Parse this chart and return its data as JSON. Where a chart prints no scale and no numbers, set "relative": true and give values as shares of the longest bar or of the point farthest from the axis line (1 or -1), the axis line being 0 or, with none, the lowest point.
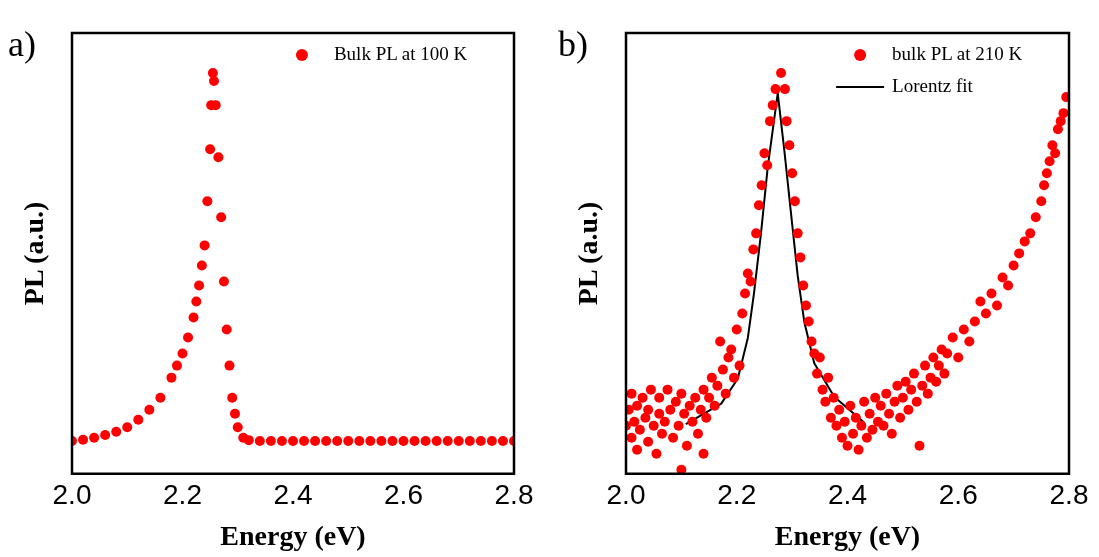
{
  "chart_data": [
    {
      "type": "scatter",
      "title": "a)",
      "xlabel": "Energy (eV)",
      "ylabel": "PL (a.u.)",
      "relative": true,
      "xlim": [
        2.0,
        2.8
      ],
      "xticks": [
        {
          "value": 2.0,
          "label": "2.0"
        },
        {
          "value": 2.2,
          "label": "2.2"
        },
        {
          "value": 2.4,
          "label": "2.4"
        },
        {
          "value": 2.6,
          "label": "2.6"
        },
        {
          "value": 2.8,
          "label": "2.8"
        }
      ],
      "legend": "top right",
      "marker": "circle",
      "series": [
        {
          "name": "Bulk PL at 100 K",
          "color": "#ff0000",
          "x": [
            2.0,
            2.02,
            2.04,
            2.06,
            2.08,
            2.1,
            2.12,
            2.14,
            2.16,
            2.18,
            2.19,
            2.2,
            2.21,
            2.22,
            2.225,
            2.23,
            2.235,
            2.24,
            2.245,
            2.25,
            2.252,
            2.255,
            2.257,
            2.26,
            2.265,
            2.27,
            2.275,
            2.28,
            2.285,
            2.29,
            2.295,
            2.3,
            2.31,
            2.32,
            2.34,
            2.36,
            2.38,
            2.4,
            2.42,
            2.44,
            2.46,
            2.48,
            2.5,
            2.52,
            2.54,
            2.56,
            2.58,
            2.6,
            2.62,
            2.64,
            2.66,
            2.68,
            2.7,
            2.72,
            2.74,
            2.76,
            2.78,
            2.8
          ],
          "values": [
            0.082,
            0.085,
            0.09,
            0.097,
            0.105,
            0.116,
            0.135,
            0.16,
            0.19,
            0.24,
            0.27,
            0.3,
            0.34,
            0.39,
            0.43,
            0.47,
            0.52,
            0.57,
            0.68,
            0.81,
            0.92,
            1.0,
            0.98,
            0.92,
            0.79,
            0.64,
            0.48,
            0.36,
            0.27,
            0.19,
            0.15,
            0.116,
            0.09,
            0.084,
            0.082,
            0.082,
            0.082,
            0.082,
            0.082,
            0.082,
            0.082,
            0.082,
            0.082,
            0.082,
            0.082,
            0.082,
            0.082,
            0.082,
            0.082,
            0.082,
            0.082,
            0.082,
            0.082,
            0.082,
            0.082,
            0.082,
            0.082,
            0.082
          ]
        }
      ]
    },
    {
      "type": "scatter",
      "title": "b)",
      "xlabel": "Energy (eV)",
      "ylabel": "PL (a.u.)",
      "relative": true,
      "xlim": [
        2.0,
        2.8
      ],
      "xticks": [
        {
          "value": 2.0,
          "label": "2.0"
        },
        {
          "value": 2.2,
          "label": "2.2"
        },
        {
          "value": 2.4,
          "label": "2.4"
        },
        {
          "value": 2.6,
          "label": "2.6"
        },
        {
          "value": 2.8,
          "label": "2.8"
        }
      ],
      "legend": "top right",
      "series": [
        {
          "name": "bulk PL at 210 K",
          "color": "#ff0000",
          "marker": "circle",
          "x": [
            2.0,
            2.005,
            2.01,
            2.01,
            2.015,
            2.02,
            2.02,
            2.025,
            2.03,
            2.035,
            2.04,
            2.04,
            2.045,
            2.05,
            2.055,
            2.06,
            2.06,
            2.065,
            2.07,
            2.075,
            2.08,
            2.085,
            2.09,
            2.095,
            2.1,
            2.1,
            2.105,
            2.11,
            2.115,
            2.12,
            2.125,
            2.13,
            2.135,
            2.14,
            2.14,
            2.145,
            2.15,
            2.155,
            2.16,
            2.165,
            2.17,
            2.175,
            2.18,
            2.185,
            2.19,
            2.195,
            2.2,
            2.205,
            2.21,
            2.215,
            2.22,
            2.225,
            2.23,
            2.235,
            2.24,
            2.245,
            2.25,
            2.255,
            2.26,
            2.265,
            2.27,
            2.28,
            2.287,
            2.29,
            2.295,
            2.3,
            2.305,
            2.31,
            2.315,
            2.32,
            2.325,
            2.33,
            2.335,
            2.34,
            2.345,
            2.35,
            2.355,
            2.36,
            2.365,
            2.37,
            2.375,
            2.38,
            2.385,
            2.39,
            2.395,
            2.4,
            2.405,
            2.41,
            2.415,
            2.42,
            2.425,
            2.43,
            2.435,
            2.44,
            2.445,
            2.45,
            2.455,
            2.46,
            2.465,
            2.47,
            2.475,
            2.48,
            2.485,
            2.49,
            2.495,
            2.5,
            2.505,
            2.51,
            2.515,
            2.52,
            2.525,
            2.53,
            2.535,
            2.54,
            2.545,
            2.55,
            2.555,
            2.56,
            2.565,
            2.57,
            2.575,
            2.58,
            2.59,
            2.6,
            2.61,
            2.62,
            2.63,
            2.64,
            2.65,
            2.66,
            2.67,
            2.68,
            2.69,
            2.7,
            2.71,
            2.72,
            2.73,
            2.74,
            2.75,
            2.755,
            2.76,
            2.765,
            2.77,
            2.775,
            2.78,
            2.785,
            2.79,
            2.795
          ],
          "values": [
            0.12,
            0.16,
            0.09,
            0.2,
            0.13,
            0.06,
            0.17,
            0.11,
            0.19,
            0.14,
            0.08,
            0.16,
            0.21,
            0.12,
            0.05,
            0.15,
            0.19,
            0.1,
            0.13,
            0.21,
            0.16,
            0.09,
            0.18,
            0.12,
            0.01,
            0.2,
            0.15,
            0.07,
            0.17,
            0.13,
            0.19,
            0.1,
            0.16,
            0.05,
            0.21,
            0.14,
            0.19,
            0.24,
            0.17,
            0.22,
            0.33,
            0.26,
            0.2,
            0.29,
            0.31,
            0.24,
            0.36,
            0.27,
            0.4,
            0.45,
            0.5,
            0.48,
            0.56,
            0.6,
            0.67,
            0.72,
            0.8,
            0.77,
            0.88,
            0.92,
            0.96,
            1.0,
            0.96,
            0.88,
            0.82,
            0.75,
            0.68,
            0.6,
            0.54,
            0.47,
            0.42,
            0.38,
            0.33,
            0.3,
            0.25,
            0.29,
            0.21,
            0.18,
            0.24,
            0.14,
            0.19,
            0.12,
            0.16,
            0.09,
            0.13,
            0.07,
            0.17,
            0.1,
            0.14,
            0.06,
            0.12,
            0.18,
            0.09,
            0.15,
            0.11,
            0.19,
            0.13,
            0.17,
            0.12,
            0.2,
            0.15,
            0.1,
            0.18,
            0.22,
            0.14,
            0.19,
            0.23,
            0.16,
            0.21,
            0.25,
            0.18,
            0.07,
            0.22,
            0.27,
            0.2,
            0.24,
            0.29,
            0.23,
            0.27,
            0.31,
            0.25,
            0.3,
            0.34,
            0.29,
            0.36,
            0.33,
            0.38,
            0.43,
            0.4,
            0.45,
            0.42,
            0.49,
            0.47,
            0.52,
            0.55,
            0.58,
            0.6,
            0.64,
            0.68,
            0.72,
            0.75,
            0.78,
            0.82,
            0.8,
            0.86,
            0.88,
            0.9,
            0.94
          ]
        },
        {
          "name": "Lorentz fit",
          "type": "line",
          "color": "#000000",
          "marker": "none",
          "x": [
            2.108,
            2.172,
            2.202,
            2.22,
            2.231,
            2.244,
            2.256,
            2.274,
            2.286,
            2.298,
            2.31,
            2.322,
            2.34,
            2.376,
            2.43
          ],
          "values": [
            0.124,
            0.175,
            0.238,
            0.339,
            0.449,
            0.603,
            0.766,
            0.95,
            0.806,
            0.65,
            0.495,
            0.379,
            0.276,
            0.192,
            0.128
          ]
        }
      ]
    }
  ]
}
